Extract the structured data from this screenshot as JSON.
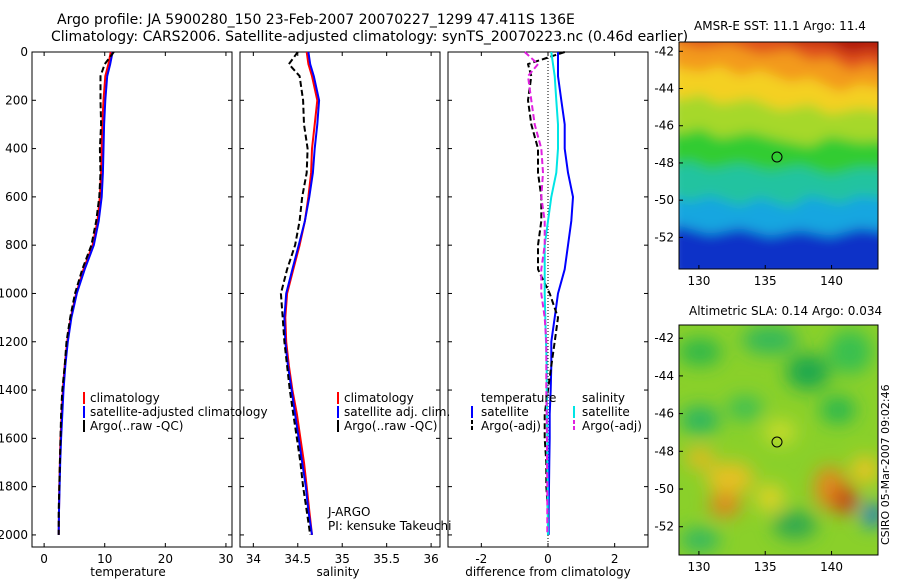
{
  "header": {
    "line1": "Argo profile: JA 5900280_150 23-Feb-2007 20070227_1299 47.411S 136E",
    "line2": "Climatology: CARS2006. Satellite-adjusted climatology: synTS_20070223.nc (0.46d earlier)"
  },
  "colors": {
    "climatology": "#ff0000",
    "satellite": "#0000ff",
    "argo": "#000000",
    "sal_satellite": "#00e5e5",
    "sal_argo": "#e020e0"
  },
  "chart_data": [
    {
      "type": "line",
      "id": "temperature",
      "xlabel": "temperature",
      "ylabel": "",
      "xlim": [
        -2,
        31
      ],
      "ylim": [
        2050,
        0
      ],
      "xticks": [
        "0",
        "10",
        "20",
        "30"
      ],
      "yticks": [
        "0",
        "200",
        "400",
        "600",
        "800",
        "1000",
        "1200",
        "1400",
        "1600",
        "1800",
        "2000"
      ],
      "depth": [
        0,
        50,
        100,
        200,
        300,
        400,
        500,
        600,
        700,
        800,
        900,
        1000,
        1100,
        1200,
        1300,
        1400,
        1500,
        1600,
        1700,
        1800,
        1900,
        2000
      ],
      "series": [
        {
          "name": "climatology",
          "values": [
            11.0,
            10.6,
            10.1,
            9.8,
            9.6,
            9.5,
            9.4,
            9.2,
            8.8,
            8.0,
            6.5,
            5.3,
            4.4,
            3.8,
            3.4,
            3.1,
            2.9,
            2.7,
            2.6,
            2.5,
            2.45,
            2.4
          ]
        },
        {
          "name": "satellite-adjusted climatology",
          "values": [
            11.3,
            10.9,
            10.4,
            10.1,
            9.9,
            9.8,
            9.7,
            9.5,
            9.0,
            8.2,
            6.7,
            5.4,
            4.5,
            3.9,
            3.5,
            3.2,
            3.0,
            2.8,
            2.65,
            2.55,
            2.45,
            2.4
          ]
        },
        {
          "name": "Argo(..raw -QC)",
          "values": [
            11.5,
            10.0,
            9.3,
            9.3,
            9.4,
            9.2,
            9.3,
            9.1,
            8.6,
            7.8,
            6.3,
            5.1,
            4.3,
            3.7,
            3.4,
            3.0,
            2.8,
            2.7,
            2.6,
            2.5,
            2.4,
            2.4
          ]
        }
      ],
      "legend": [
        "climatology",
        "satellite-adjusted climatology",
        "Argo(..raw -QC)"
      ]
    },
    {
      "type": "line",
      "id": "salinity",
      "xlabel": "salinity",
      "xlim": [
        33.85,
        36.1
      ],
      "ylim": [
        2050,
        0
      ],
      "xticks": [
        "34",
        "34.5",
        "35",
        "35.5",
        "36"
      ],
      "depth": [
        0,
        50,
        100,
        200,
        300,
        400,
        500,
        600,
        700,
        800,
        900,
        1000,
        1100,
        1200,
        1300,
        1400,
        1500,
        1600,
        1700,
        1800,
        1900,
        2000
      ],
      "series": [
        {
          "name": "climatology",
          "values": [
            34.6,
            34.62,
            34.66,
            34.72,
            34.69,
            34.66,
            34.65,
            34.62,
            34.58,
            34.52,
            34.45,
            34.38,
            34.36,
            34.37,
            34.4,
            34.44,
            34.49,
            34.53,
            34.57,
            34.6,
            34.63,
            34.66
          ]
        },
        {
          "name": "satellite adj. clim.",
          "values": [
            34.62,
            34.64,
            34.68,
            34.74,
            34.72,
            34.69,
            34.67,
            34.63,
            34.58,
            34.51,
            34.44,
            34.37,
            34.35,
            34.36,
            34.39,
            34.43,
            34.47,
            34.51,
            34.55,
            34.59,
            34.62,
            34.66
          ]
        },
        {
          "name": "Argo(..raw -QC)",
          "values": [
            34.5,
            34.4,
            34.52,
            34.56,
            34.57,
            34.61,
            34.6,
            34.55,
            34.52,
            34.47,
            34.38,
            34.31,
            34.33,
            34.35,
            34.38,
            34.41,
            34.45,
            34.49,
            34.53,
            34.56,
            34.6,
            34.64
          ]
        }
      ],
      "legend": [
        "climatology",
        "satellite adj. clim.",
        "Argo(..raw -QC)"
      ],
      "annotation": [
        "J-ARGO",
        "PI: kensuke Takeuchi"
      ]
    },
    {
      "type": "line",
      "id": "difference",
      "xlabel": "difference from climatology",
      "xlim": [
        -3,
        3
      ],
      "ylim": [
        2050,
        0
      ],
      "xticks": [
        "-2",
        "0",
        "2"
      ],
      "depth": [
        0,
        50,
        100,
        200,
        300,
        400,
        500,
        600,
        700,
        800,
        900,
        1000,
        1100,
        1200,
        1300,
        1400,
        1500,
        1600,
        1700,
        1800,
        1900,
        2000
      ],
      "series": [
        {
          "name": "temperature satellite",
          "values": [
            0.3,
            0.3,
            0.3,
            0.4,
            0.5,
            0.5,
            0.6,
            0.75,
            0.7,
            0.6,
            0.5,
            0.3,
            0.2,
            0.1,
            0.1,
            0.08,
            0.05,
            0.05,
            0.04,
            0.03,
            0.02,
            0.02
          ]
        },
        {
          "name": "temperature Argo(-adj)",
          "values": [
            0.5,
            -0.6,
            -0.5,
            -0.6,
            -0.5,
            -0.3,
            -0.3,
            -0.2,
            -0.2,
            -0.3,
            -0.3,
            0.05,
            0.3,
            0.2,
            0.1,
            0.0,
            -0.1,
            -0.1,
            -0.05,
            -0.05,
            0.0,
            0.0
          ]
        },
        {
          "name": "salinity satellite",
          "values": [
            0.1,
            0.15,
            0.2,
            0.25,
            0.3,
            0.3,
            0.25,
            0.1,
            0.0,
            -0.1,
            -0.1,
            -0.1,
            -0.08,
            -0.06,
            -0.04,
            -0.04,
            -0.03,
            -0.02,
            -0.02,
            -0.01,
            -0.01,
            0.0
          ]
        },
        {
          "name": "salinity Argo(-adj)",
          "values": [
            -0.7,
            -0.3,
            -0.6,
            -0.5,
            -0.4,
            -0.2,
            -0.15,
            -0.2,
            -0.1,
            -0.1,
            -0.2,
            -0.2,
            -0.1,
            -0.05,
            -0.05,
            -0.05,
            -0.04,
            -0.03,
            -0.03,
            -0.02,
            -0.02,
            -0.02
          ]
        }
      ],
      "legend_temperature": {
        "header": "temperature",
        "items": [
          "satellite",
          "Argo(-adj)"
        ]
      },
      "legend_salinity": {
        "header": "salinity",
        "items": [
          "satellite",
          "Argo(-adj)"
        ]
      }
    },
    {
      "type": "heatmap",
      "id": "sst-map",
      "title": "AMSR-E SST: 11.1 Argo: 11.4",
      "xlim": [
        128.5,
        143.5
      ],
      "ylim": [
        -53.7,
        -41.5
      ],
      "xticks": [
        "130",
        "135",
        "140"
      ],
      "yticks": [
        "-42",
        "-44",
        "-46",
        "-48",
        "-50",
        "-52"
      ],
      "marker": {
        "lon": 136,
        "lat": -47.4
      }
    },
    {
      "type": "heatmap",
      "id": "sla-map",
      "title": "Altimetric SLA: 0.14 Argo: 0.034",
      "xlim": [
        128.5,
        143.5
      ],
      "ylim": [
        -53.5,
        -41.3
      ],
      "xticks": [
        "130",
        "135",
        "140"
      ],
      "yticks": [
        "-42",
        "-44",
        "-46",
        "-48",
        "-50",
        "-52"
      ],
      "marker": {
        "lon": 136,
        "lat": -47.4
      }
    }
  ],
  "credit": "CSIRO 05-Mar-2007 09:02:46"
}
